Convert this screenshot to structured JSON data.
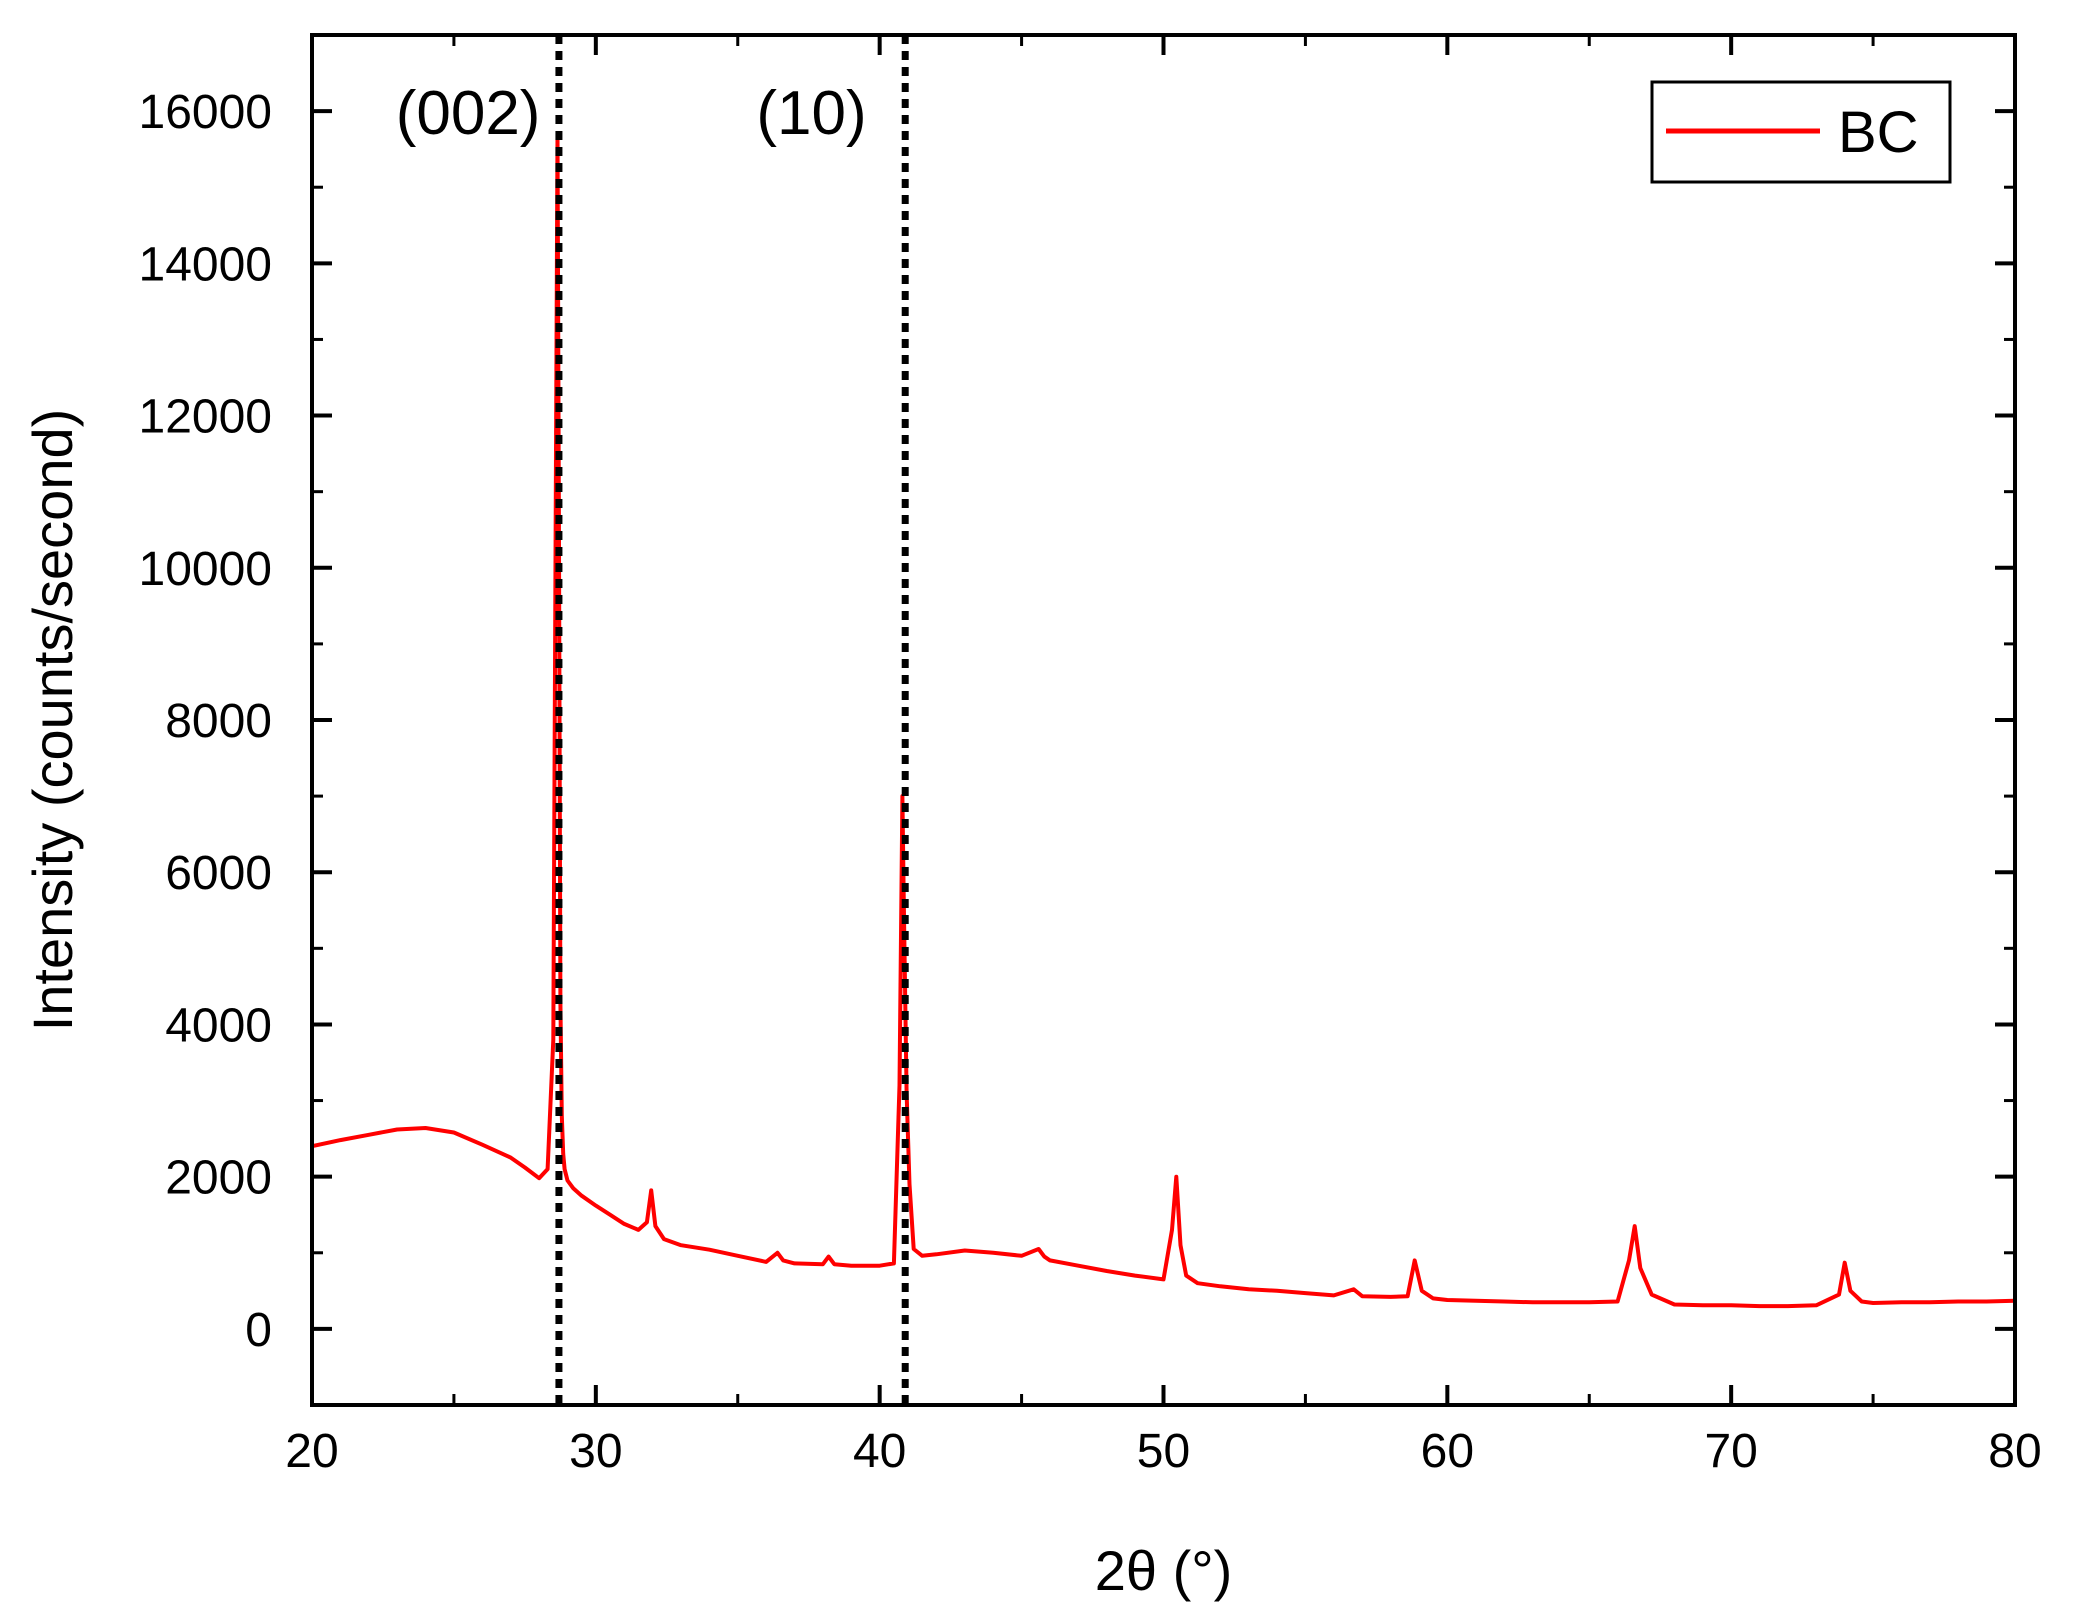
{
  "chart_data": {
    "type": "line",
    "title": "",
    "xlabel": "2θ (°)",
    "ylabel": "Intensity (counts/second)",
    "xlim": [
      20,
      80
    ],
    "ylim": [
      -1000,
      17000
    ],
    "x_ticks": [
      20,
      30,
      40,
      50,
      60,
      70,
      80
    ],
    "y_ticks": [
      0,
      2000,
      4000,
      6000,
      8000,
      10000,
      12000,
      14000,
      16000
    ],
    "grid": false,
    "legend_position": "top-right",
    "colors": {
      "series": "#ff0000",
      "reference_lines": "#000000"
    },
    "series": [
      {
        "name": "BC",
        "x": [
          20,
          21,
          22,
          23,
          24,
          25,
          26,
          27,
          27.5,
          28,
          28.3,
          28.5,
          28.6,
          28.65,
          28.7,
          28.75,
          28.8,
          28.85,
          28.9,
          29.0,
          29.2,
          29.5,
          30,
          30.5,
          31,
          31.5,
          31.8,
          31.95,
          32.1,
          32.4,
          33,
          34,
          35,
          36,
          36.4,
          36.6,
          37,
          38,
          38.2,
          38.4,
          39,
          40,
          40.5,
          40.7,
          40.8,
          40.85,
          40.95,
          41.05,
          41.2,
          41.5,
          42,
          43,
          44,
          45,
          45.6,
          45.8,
          46,
          47,
          48,
          49,
          50,
          50.3,
          50.45,
          50.6,
          50.8,
          51.2,
          52,
          53,
          54,
          55,
          56,
          56.7,
          57,
          58,
          58.6,
          58.85,
          59.1,
          59.5,
          60,
          61,
          62,
          63,
          64,
          65,
          66,
          66.4,
          66.6,
          66.8,
          67.2,
          68,
          69,
          70,
          71,
          72,
          73,
          73.8,
          74.0,
          74.2,
          74.6,
          75,
          76,
          77,
          78,
          79,
          80
        ],
        "y": [
          2400,
          2480,
          2550,
          2620,
          2640,
          2580,
          2420,
          2250,
          2120,
          1980,
          2100,
          3800,
          11800,
          15700,
          10700,
          4300,
          2800,
          2300,
          2100,
          1950,
          1850,
          1750,
          1620,
          1500,
          1380,
          1300,
          1400,
          1820,
          1350,
          1180,
          1100,
          1040,
          960,
          880,
          1000,
          900,
          860,
          850,
          950,
          850,
          830,
          830,
          860,
          3200,
          7000,
          5600,
          3100,
          1900,
          1050,
          960,
          980,
          1030,
          1000,
          960,
          1050,
          950,
          900,
          830,
          760,
          700,
          650,
          1300,
          2000,
          1100,
          700,
          600,
          560,
          520,
          500,
          470,
          440,
          520,
          430,
          420,
          430,
          900,
          500,
          400,
          380,
          370,
          360,
          350,
          350,
          350,
          360,
          900,
          1350,
          800,
          450,
          320,
          310,
          310,
          300,
          300,
          310,
          450,
          870,
          500,
          360,
          340,
          350,
          350,
          360,
          360,
          370
        ]
      }
    ],
    "reference_lines": [
      28.7,
      40.9
    ],
    "annotations": [
      {
        "text": "(002)",
        "x": 25.5,
        "y": 15700
      },
      {
        "text": "(10)",
        "x": 37.6,
        "y": 15700
      }
    ]
  }
}
